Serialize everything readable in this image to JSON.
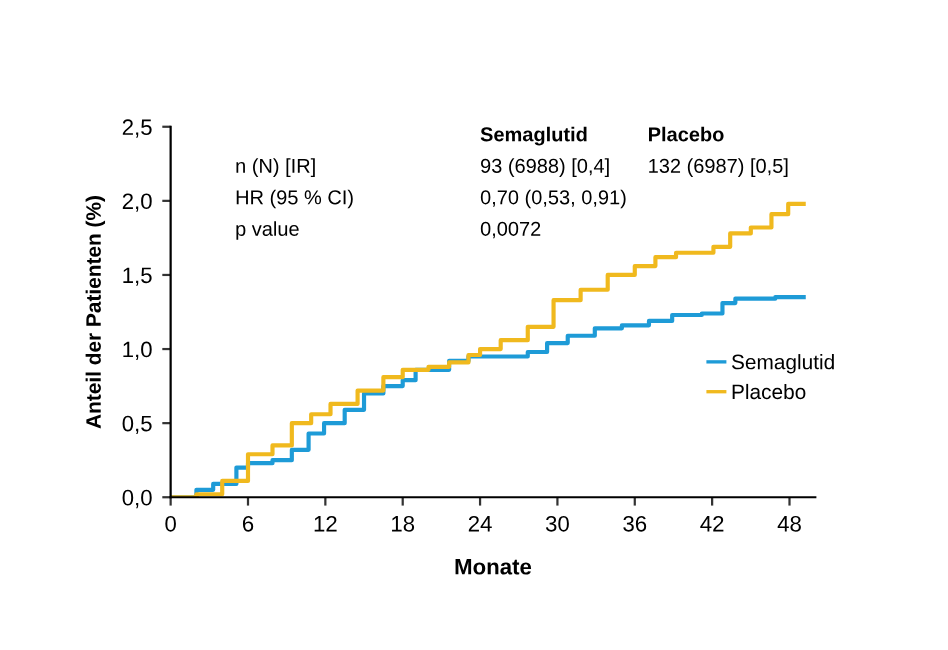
{
  "chart_data": {
    "type": "step",
    "xlabel": "Monate",
    "ylabel": "Anteil der Patienten (%)",
    "xlim": [
      0,
      50
    ],
    "xticks": [
      0,
      6,
      12,
      18,
      24,
      30,
      36,
      42,
      48
    ],
    "ylim": [
      0,
      2.5
    ],
    "yticks": [
      {
        "value": 0,
        "label": "0,0"
      },
      {
        "value": 0.5,
        "label": "0,5"
      },
      {
        "value": 1,
        "label": "1,0"
      },
      {
        "value": 1.5,
        "label": "1,5"
      },
      {
        "value": 2,
        "label": "2,0"
      },
      {
        "value": 2.5,
        "label": "2,5"
      }
    ],
    "grid": false,
    "legend": "right",
    "annotations": [
      "Semaglutid",
      "Placebo",
      "n (N) [IR]",
      "93 (6988) [0,4]",
      "132 (6987) [0,5]",
      "HR (95 % CI)",
      "0,70 (0,53, 0,91)",
      "p value",
      "0,0072"
    ],
    "series": [
      {
        "name": "Semaglutid",
        "color": "#1e9bd7",
        "x": [
          0,
          2,
          3.3,
          5.1,
          6,
          7.9,
          9.4,
          10.7,
          11.9,
          13.5,
          15,
          16.5,
          18,
          19,
          20.8,
          21.6,
          23.1,
          25.8,
          27.7,
          29.2,
          30.8,
          32.9,
          35,
          37.1,
          38.9,
          41.2,
          42.8,
          43.8,
          45.9,
          46.9,
          49.1
        ],
        "values": [
          0,
          0.05,
          0.09,
          0.2,
          0.23,
          0.25,
          0.32,
          0.43,
          0.5,
          0.59,
          0.7,
          0.75,
          0.79,
          0.86,
          0.86,
          0.92,
          0.95,
          0.95,
          0.98,
          1.04,
          1.09,
          1.14,
          1.16,
          1.19,
          1.23,
          1.24,
          1.31,
          1.34,
          1.34,
          1.35,
          1.35
        ]
      },
      {
        "name": "Placebo",
        "color": "#f0b91e",
        "x": [
          0,
          2,
          4,
          6,
          7.9,
          9.4,
          10.9,
          12.4,
          14.5,
          16.5,
          18,
          20,
          21.6,
          23.1,
          24,
          25.6,
          27.7,
          29.7,
          31.8,
          33.9,
          36,
          37.6,
          39.2,
          40.8,
          42.1,
          43.4,
          45,
          46.6,
          47.9,
          49.1
        ],
        "values": [
          0,
          0.02,
          0.11,
          0.29,
          0.35,
          0.5,
          0.56,
          0.63,
          0.72,
          0.81,
          0.86,
          0.88,
          0.91,
          0.96,
          1.0,
          1.06,
          1.15,
          1.33,
          1.4,
          1.5,
          1.56,
          1.62,
          1.65,
          1.65,
          1.69,
          1.78,
          1.82,
          1.91,
          1.98,
          1.98
        ]
      }
    ]
  }
}
